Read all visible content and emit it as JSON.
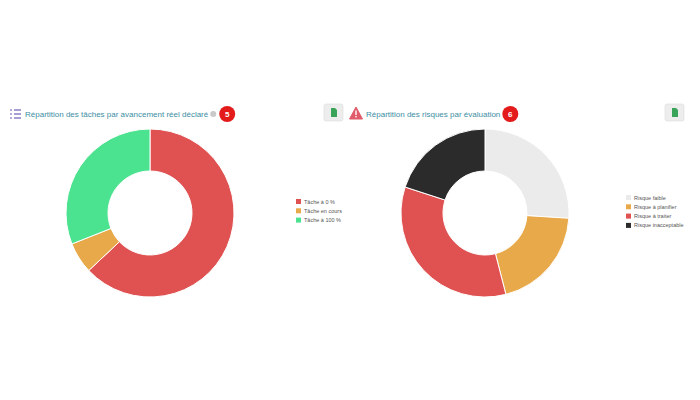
{
  "chart_data": [
    {
      "type": "donut",
      "title": "Répartition des tâches par avancement réel déclaré",
      "annotations": [
        "5"
      ],
      "categories": [
        "Tâche à 0 %",
        "Tâche en cours",
        "Tâche à 100 %"
      ],
      "values": [
        63,
        6,
        31
      ],
      "colors": [
        "#e05252",
        "#e8a94a",
        "#4be38f"
      ],
      "legend": "right"
    },
    {
      "type": "donut",
      "title": "Répartition des risques par évaluation",
      "annotations": [
        "6"
      ],
      "categories": [
        "Risque faible",
        "Risque à planifier",
        "Risque à traiter",
        "Risque inacceptable"
      ],
      "values": [
        26,
        20,
        34,
        20
      ],
      "colors": [
        "#ebebeb",
        "#e8a94a",
        "#e05252",
        "#2b2b2b"
      ],
      "legend": "right"
    }
  ]
}
